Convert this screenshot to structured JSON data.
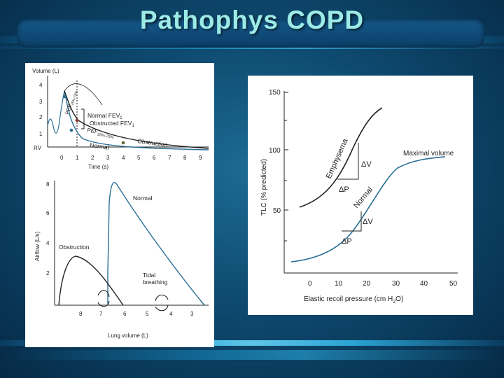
{
  "slide": {
    "title": "Pathophys COPD"
  },
  "volume_time": {
    "ylabel": "Volume (L)",
    "y_ticks": [
      "4",
      "3",
      "2",
      "1"
    ],
    "rv_label": "RV",
    "xlabel": "Time (s)",
    "x_ticks": [
      "0",
      "1",
      "2",
      "3",
      "4",
      "5",
      "6",
      "7",
      "8",
      "9"
    ],
    "labels": {
      "normal_fev1": "Normal FEV",
      "normal_fev1_sub": "1",
      "obstructed_fev1": "Obstructed FEV",
      "obstructed_fev1_sub": "1",
      "pef_normal": "PEF",
      "pef_normal_sub": "25%-75%",
      "pef_obstructed": "PEF",
      "pef_obstructed_sub": "25%-75%",
      "normal": "Normal",
      "obstruction": "Obstruction"
    }
  },
  "flow_volume": {
    "ylabel": "Airflow (L/s)",
    "y_ticks": [
      "8",
      "6",
      "4",
      "2"
    ],
    "xlabel": "Lung volume (L)",
    "x_ticks": [
      "8",
      "7",
      "6",
      "5",
      "4",
      "3"
    ],
    "labels": {
      "normal": "Normal",
      "obstruction": "Obstruction",
      "tidal_line1": "Tidal",
      "tidal_line2": "breathing"
    }
  },
  "compliance": {
    "ylabel": "TLC (% predicted)",
    "y_ticks": [
      "150",
      "100",
      "50"
    ],
    "xlabel": "Elastic recoil pressure (cm H",
    "xlabel_sub": "2",
    "xlabel_end": "O)",
    "x_ticks": [
      "0",
      "10",
      "20",
      "30",
      "40",
      "50"
    ],
    "labels": {
      "emphysema": "Emphysema",
      "normal": "Normal",
      "maximal_volume": "Maximal volume",
      "delta_v": "ΔV",
      "delta_p": "ΔP"
    },
    "colors": {
      "curve": "#2a6f97",
      "emphysema": "#222222"
    }
  }
}
